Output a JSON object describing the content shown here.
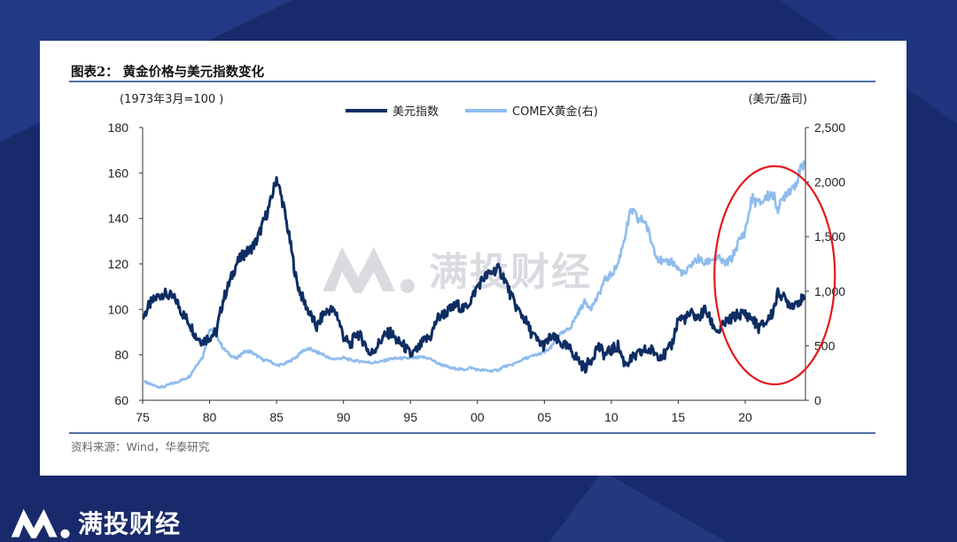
{
  "figure": {
    "title": "图表2： 黄金价格与美元指数变化",
    "source": "资料来源：Wind，华泰研究"
  },
  "watermark": {
    "text": "满投财经"
  },
  "brand": {
    "text": "满投财经"
  },
  "colors": {
    "background": "#182a6b",
    "dxy": "#0d2d63",
    "gold": "#8fbcee",
    "highlight": "#e3181c",
    "rule": "#4e6fa8"
  },
  "chart_data": {
    "type": "line",
    "title": "图表2： 黄金价格与美元指数变化",
    "left_axis": {
      "unit_label": "(1973年3月=100 )",
      "range": [
        60,
        180
      ],
      "ticks": [
        60,
        80,
        100,
        120,
        140,
        160,
        180
      ],
      "tick_labels": [
        "60",
        "80",
        "100",
        "120",
        "140",
        "160",
        "180"
      ]
    },
    "right_axis": {
      "unit_label": "(美元/盎司)",
      "range": [
        0,
        2500
      ],
      "ticks": [
        0,
        500,
        1000,
        1500,
        2000,
        2500
      ],
      "tick_labels": [
        "0",
        "500",
        "1,000",
        "1,500",
        "2,000",
        "2,500"
      ]
    },
    "x_axis": {
      "range": [
        1975,
        2024.5
      ],
      "ticks": [
        1975,
        1980,
        1985,
        1990,
        1995,
        2000,
        2005,
        2010,
        2015,
        2020
      ],
      "tick_labels": [
        "75",
        "80",
        "85",
        "90",
        "95",
        "00",
        "05",
        "10",
        "15",
        "20"
      ]
    },
    "legend_position": "top-center",
    "grid": false,
    "series": [
      {
        "name": "美元指数",
        "axis": "left",
        "x": [
          1975,
          1975.5,
          1976,
          1976.5,
          1977,
          1977.5,
          1978,
          1978.5,
          1979,
          1979.5,
          1980,
          1980.5,
          1981,
          1981.5,
          1982,
          1982.5,
          1983,
          1983.5,
          1984,
          1984.5,
          1985,
          1985.5,
          1986,
          1986.5,
          1987,
          1987.5,
          1988,
          1988.5,
          1989,
          1989.5,
          1990,
          1990.5,
          1991,
          1991.5,
          1992,
          1992.5,
          1993,
          1993.5,
          1994,
          1994.5,
          1995,
          1995.5,
          1996,
          1996.5,
          1997,
          1997.5,
          1998,
          1998.5,
          1999,
          1999.5,
          2000,
          2000.5,
          2001,
          2001.5,
          2002,
          2002.5,
          2003,
          2003.5,
          2004,
          2004.5,
          2005,
          2005.5,
          2006,
          2006.5,
          2007,
          2007.5,
          2008,
          2008.5,
          2009,
          2009.5,
          2010,
          2010.5,
          2011,
          2011.5,
          2012,
          2012.5,
          2013,
          2013.5,
          2014,
          2014.5,
          2015,
          2015.5,
          2016,
          2016.5,
          2017,
          2017.5,
          2018,
          2018.5,
          2019,
          2019.5,
          2020,
          2020.5,
          2021,
          2021.5,
          2022,
          2022.5,
          2023,
          2023.5,
          2024,
          2024.4
        ],
        "y": [
          96,
          102,
          105,
          107,
          106,
          104,
          98,
          94,
          88,
          86,
          88,
          90,
          104,
          112,
          120,
          124,
          126,
          130,
          138,
          146,
          158,
          146,
          130,
          112,
          104,
          98,
          92,
          98,
          100,
          98,
          88,
          84,
          90,
          86,
          80,
          84,
          88,
          90,
          86,
          84,
          80,
          82,
          86,
          88,
          96,
          98,
          100,
          102,
          100,
          104,
          110,
          114,
          116,
          118,
          114,
          106,
          100,
          96,
          90,
          86,
          84,
          88,
          86,
          84,
          82,
          78,
          74,
          78,
          84,
          80,
          82,
          84,
          76,
          78,
          80,
          82,
          82,
          80,
          80,
          84,
          96,
          96,
          98,
          96,
          100,
          94,
          90,
          94,
          96,
          98,
          98,
          96,
          92,
          94,
          98,
          108,
          104,
          102,
          104,
          104
        ]
      },
      {
        "name": "COMEX黄金(右)",
        "axis": "right",
        "x": [
          1975,
          1975.5,
          1976,
          1976.5,
          1977,
          1977.5,
          1978,
          1978.5,
          1979,
          1979.5,
          1980,
          1980.5,
          1981,
          1981.5,
          1982,
          1982.5,
          1983,
          1983.5,
          1984,
          1984.5,
          1985,
          1985.5,
          1986,
          1986.5,
          1987,
          1987.5,
          1988,
          1988.5,
          1989,
          1989.5,
          1990,
          1990.5,
          1991,
          1991.5,
          1992,
          1992.5,
          1993,
          1993.5,
          1994,
          1994.5,
          1995,
          1995.5,
          1996,
          1996.5,
          1997,
          1997.5,
          1998,
          1998.5,
          1999,
          1999.5,
          2000,
          2000.5,
          2001,
          2001.5,
          2002,
          2002.5,
          2003,
          2003.5,
          2004,
          2004.5,
          2005,
          2005.5,
          2006,
          2006.5,
          2007,
          2007.5,
          2008,
          2008.5,
          2009,
          2009.5,
          2010,
          2010.5,
          2011,
          2011.5,
          2012,
          2012.5,
          2013,
          2013.5,
          2014,
          2014.5,
          2015,
          2015.5,
          2016,
          2016.5,
          2017,
          2017.5,
          2018,
          2018.5,
          2019,
          2019.5,
          2020,
          2020.5,
          2021,
          2021.5,
          2022,
          2022.5,
          2023,
          2023.5,
          2024,
          2024.4
        ],
        "y": [
          175,
          150,
          130,
          120,
          145,
          165,
          190,
          220,
          320,
          400,
          650,
          600,
          480,
          420,
          380,
          440,
          450,
          410,
          370,
          360,
          320,
          330,
          360,
          400,
          460,
          470,
          440,
          420,
          380,
          380,
          390,
          370,
          360,
          355,
          345,
          350,
          360,
          380,
          385,
          385,
          385,
          390,
          395,
          380,
          340,
          320,
          295,
          290,
          280,
          300,
          280,
          275,
          270,
          275,
          310,
          320,
          350,
          380,
          400,
          420,
          440,
          480,
          600,
          620,
          680,
          800,
          900,
          850,
          950,
          1100,
          1150,
          1250,
          1500,
          1750,
          1650,
          1650,
          1450,
          1300,
          1250,
          1280,
          1200,
          1150,
          1250,
          1300,
          1250,
          1300,
          1300,
          1250,
          1300,
          1450,
          1550,
          1850,
          1800,
          1850,
          1900,
          1750,
          1900,
          1950,
          2050,
          2200
        ]
      }
    ],
    "annotations": [
      {
        "type": "ellipse",
        "color": "#e3181c",
        "x_center": 2022.2,
        "left_value_center": 115,
        "x_half_width": 4.5,
        "left_value_half_height": 48
      }
    ]
  }
}
